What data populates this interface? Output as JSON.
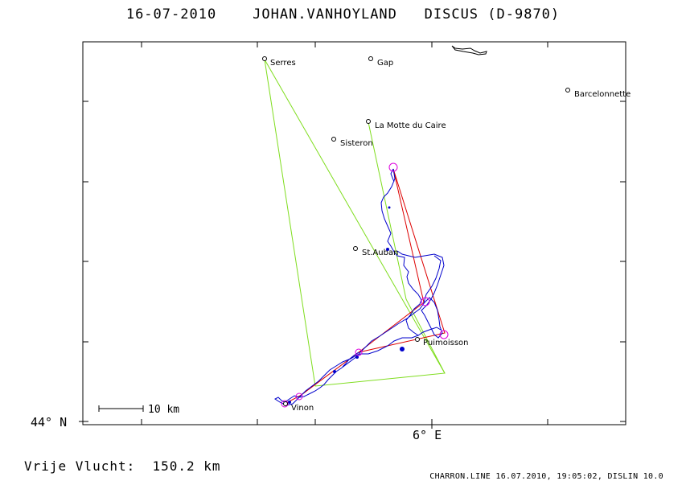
{
  "header": {
    "date": "16-07-2010",
    "pilot": "JOHAN.VANHOYLAND",
    "glider": "DISCUS (D-9870)"
  },
  "axes": {
    "latitude_label": "44° N",
    "longitude_label": "6° E"
  },
  "scale_bar": {
    "label": "10 km"
  },
  "places": [
    {
      "id": "serres",
      "name": "Serres"
    },
    {
      "id": "gap",
      "name": "Gap"
    },
    {
      "id": "barcelonnette",
      "name": "Barcelonnette"
    },
    {
      "id": "la-motte-du-caire",
      "name": "La Motte du Caire"
    },
    {
      "id": "sisteron",
      "name": "Sisteron"
    },
    {
      "id": "st-auban",
      "name": "St.Auban"
    },
    {
      "id": "puimoisson",
      "name": "Puimoisson"
    },
    {
      "id": "vinon",
      "name": "Vinon"
    }
  ],
  "footer": {
    "distance_label": "Vrije Vlucht:",
    "distance_value": "150.2 km",
    "info": "CHARRON.LINE 16.07.2010, 19:05:02, DISLIN 10.0"
  },
  "colors": {
    "track": "#0000cc",
    "triangle": "#7fdd1e",
    "route": "#dd0000",
    "turnpoint": "#dd00dd",
    "frame": "#000000"
  }
}
